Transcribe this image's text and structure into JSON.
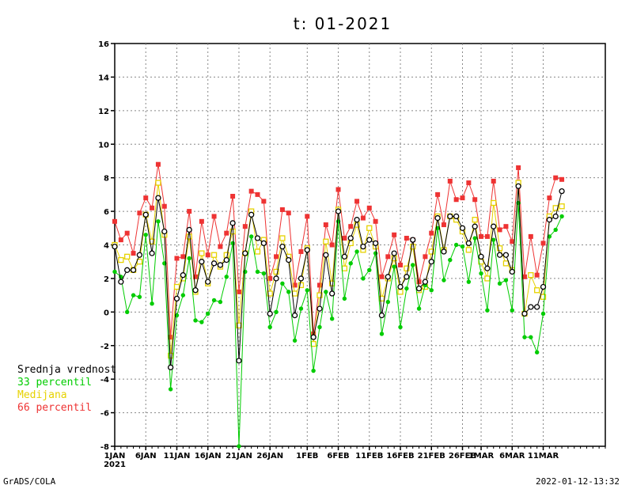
{
  "chart_data": {
    "type": "line",
    "title": "t: 01-2021",
    "ylim": [
      -8,
      16
    ],
    "yticks": [
      -8,
      -6,
      -4,
      -2,
      0,
      2,
      4,
      6,
      8,
      10,
      12,
      14,
      16
    ],
    "x_start": "2021-01-01",
    "x_end": "2021-03-21",
    "xticks": [
      {
        "date": "2021-01-01",
        "label": "1JAN",
        "sub": "2021"
      },
      {
        "date": "2021-01-06",
        "label": "6JAN"
      },
      {
        "date": "2021-01-11",
        "label": "11JAN"
      },
      {
        "date": "2021-01-16",
        "label": "16JAN"
      },
      {
        "date": "2021-01-21",
        "label": "21JAN"
      },
      {
        "date": "2021-01-26",
        "label": "26JAN"
      },
      {
        "date": "2021-02-01",
        "label": "1FEB"
      },
      {
        "date": "2021-02-06",
        "label": "6FEB"
      },
      {
        "date": "2021-02-11",
        "label": "11FEB"
      },
      {
        "date": "2021-02-16",
        "label": "16FEB"
      },
      {
        "date": "2021-02-21",
        "label": "21FEB"
      },
      {
        "date": "2021-02-26",
        "label": "26FEB"
      },
      {
        "date": "2021-03-01",
        "label": "1MAR"
      },
      {
        "date": "2021-03-06",
        "label": "6MAR"
      },
      {
        "date": "2021-03-11",
        "label": "11MAR"
      }
    ],
    "grid": true,
    "legend_position": "left",
    "series": [
      {
        "name": "Srednja vrednost",
        "color": "#000000",
        "marker": "open-circle",
        "values": [
          3.9,
          1.8,
          2.5,
          2.5,
          3.4,
          5.8,
          3.5,
          6.8,
          4.8,
          -3.3,
          0.8,
          2.2,
          4.9,
          1.3,
          3.0,
          1.8,
          2.9,
          2.8,
          3.1,
          5.3,
          -2.9,
          3.5,
          5.8,
          4.4,
          4.1,
          -0.1,
          2.0,
          3.9,
          3.1,
          -0.2,
          2.0,
          3.7,
          -1.5,
          0.2,
          3.4,
          1.1,
          6.0,
          3.3,
          4.4,
          5.5,
          3.9,
          4.3,
          4.1,
          -0.2,
          2.1,
          3.5,
          1.5,
          2.1,
          4.3,
          1.4,
          1.8,
          3.0,
          5.6,
          3.6,
          5.7,
          5.7,
          5.0,
          4.1,
          5.1,
          3.3,
          2.6,
          5.1,
          3.4,
          3.4,
          2.4,
          7.5,
          -0.1,
          0.3,
          0.3,
          1.5,
          5.5,
          5.7,
          7.2
        ]
      },
      {
        "name": "33 percentil",
        "color": "#00cc00",
        "marker": "filled-circle",
        "values": [
          2.4,
          2.1,
          0.0,
          1.0,
          0.9,
          4.6,
          0.5,
          5.4,
          2.9,
          -4.6,
          -0.2,
          1.0,
          3.2,
          -0.5,
          -0.6,
          -0.1,
          0.7,
          0.6,
          2.1,
          4.1,
          -8.0,
          2.4,
          4.5,
          2.4,
          2.3,
          -0.9,
          0.0,
          1.7,
          1.2,
          -1.7,
          0.2,
          1.3,
          -3.5,
          -0.9,
          1.2,
          -0.4,
          5.4,
          0.8,
          2.9,
          3.6,
          2.0,
          2.5,
          3.5,
          -1.3,
          0.6,
          2.7,
          -0.9,
          1.4,
          2.8,
          0.2,
          1.6,
          1.3,
          5.0,
          1.9,
          3.1,
          4.0,
          3.9,
          1.8,
          4.4,
          2.3,
          0.1,
          4.3,
          1.7,
          1.9,
          0.1,
          6.5,
          -1.5,
          -1.5,
          -2.4,
          -0.1,
          4.5,
          4.9,
          5.7
        ]
      },
      {
        "name": "Medijana",
        "color": "#e6d200",
        "marker": "open-square",
        "values": [
          4.0,
          3.1,
          3.3,
          2.5,
          3.0,
          5.8,
          4.2,
          7.7,
          4.6,
          -2.6,
          1.5,
          2.0,
          4.5,
          1.2,
          3.5,
          1.7,
          3.4,
          2.7,
          3.4,
          4.8,
          -0.8,
          3.5,
          6.0,
          3.6,
          4.3,
          1.1,
          2.4,
          4.4,
          3.3,
          1.1,
          1.6,
          3.8,
          -1.9,
          1.0,
          4.2,
          1.7,
          6.1,
          2.6,
          4.1,
          5.2,
          3.7,
          5.0,
          3.9,
          0.8,
          2.0,
          3.2,
          1.2,
          2.6,
          3.9,
          1.3,
          1.5,
          3.6,
          5.7,
          3.7,
          5.7,
          5.5,
          4.8,
          3.7,
          5.5,
          3.0,
          2.0,
          6.5,
          3.8,
          2.9,
          2.5,
          7.7,
          -0.1,
          2.2,
          1.3,
          0.9,
          5.7,
          6.2,
          6.3
        ]
      },
      {
        "name": "66 percentil",
        "color": "#ee3333",
        "marker": "filled-square",
        "values": [
          5.4,
          4.3,
          4.7,
          3.5,
          5.9,
          6.8,
          6.2,
          8.8,
          6.3,
          -1.5,
          3.2,
          3.3,
          6.0,
          2.1,
          5.4,
          3.4,
          5.7,
          3.9,
          4.7,
          6.9,
          1.2,
          5.1,
          7.2,
          7.0,
          6.6,
          2.0,
          3.3,
          6.1,
          5.9,
          1.6,
          3.6,
          5.7,
          -1.3,
          1.6,
          5.2,
          4.0,
          7.3,
          4.4,
          5.1,
          6.6,
          5.6,
          6.2,
          5.4,
          2.1,
          3.3,
          4.6,
          2.8,
          4.4,
          4.3,
          1.8,
          3.3,
          4.7,
          7.0,
          5.2,
          7.8,
          6.7,
          6.8,
          7.7,
          6.7,
          4.5,
          4.5,
          7.8,
          4.9,
          5.1,
          4.2,
          8.6,
          2.1,
          4.5,
          2.2,
          4.1,
          6.8,
          8.0,
          7.9
        ]
      }
    ]
  },
  "legend": [
    {
      "label": "Srednja vrednost",
      "color": "#000000"
    },
    {
      "label": "33 percentil",
      "color": "#00cc00"
    },
    {
      "label": "Medijana",
      "color": "#e6d200"
    },
    {
      "label": "66 percentil",
      "color": "#ee3333"
    }
  ],
  "footer": {
    "left": "GrADS/COLA",
    "right": "2022-01-12-13:32"
  }
}
